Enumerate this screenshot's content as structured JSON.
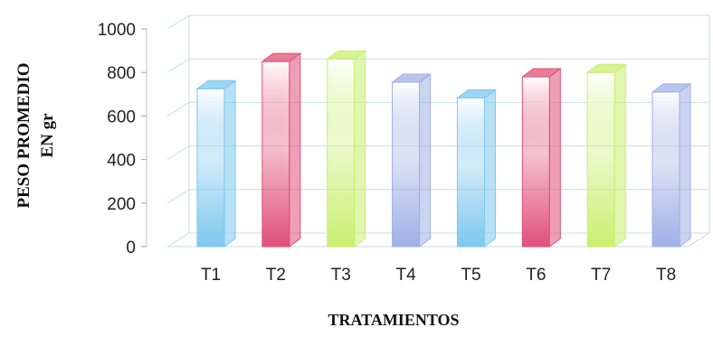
{
  "chart_data": {
    "type": "bar",
    "categories": [
      "T1",
      "T2",
      "T3",
      "T4",
      "T5",
      "T6",
      "T7",
      "T8"
    ],
    "values": [
      725,
      850,
      862,
      755,
      683,
      780,
      800,
      710
    ],
    "ylabel_line1": "PESO PROMEDIO",
    "ylabel_line2": "EN  gr",
    "xlabel": "TRATAMIENTOS",
    "ylim": [
      0,
      1000
    ],
    "yticks": [
      "0",
      "200",
      "400",
      "600",
      "800",
      "1000"
    ],
    "grid": true,
    "bar_style": "3d",
    "colors": [
      "#7ec8ee",
      "#e0507a",
      "#c8f070",
      "#9fb0e6",
      "#7ec8ee",
      "#e0507a",
      "#c8f070",
      "#9fb0e6"
    ],
    "grid_color": "#c8dde6"
  }
}
